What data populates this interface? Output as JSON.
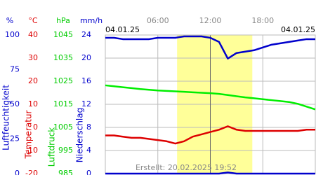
{
  "chart_data": {
    "type": "line",
    "date_start": "04.01.25",
    "date_end": "04.01.25",
    "note": "Erstellt: 20.02.2025 19:52",
    "x": [
      0,
      1,
      2,
      3,
      4,
      5,
      6,
      7,
      8,
      9,
      10,
      11,
      12,
      13,
      14,
      15,
      16,
      17,
      18,
      19,
      20,
      21,
      22,
      23,
      24
    ],
    "xlim": [
      0,
      24
    ],
    "xticks": [
      {
        "value": 6,
        "label": "06:00"
      },
      {
        "value": 12,
        "label": "12:00"
      },
      {
        "value": 18,
        "label": "18:00"
      }
    ],
    "shaded_range": [
      8.2,
      16.8
    ],
    "shaded_color": "#ffff99",
    "grid": true,
    "y_unit": "%",
    "y_label": "Luftfeuchtigkeit",
    "y_color": "#0000cc",
    "ylim": [
      0,
      100
    ],
    "yticks": [
      0,
      25,
      50,
      75,
      100
    ],
    "y2_unit": "°C",
    "y2_label": "Temperatur",
    "y2_color": "#dd0000",
    "y2lim": [
      -20,
      40
    ],
    "y2ticks": [
      -20,
      -10,
      0,
      10,
      20,
      30,
      40
    ],
    "y3_unit": "hPa",
    "y3_label": "Luftdruck",
    "y3_color": "#00cc00",
    "y3lim": [
      985,
      1045
    ],
    "y3ticks": [
      985,
      995,
      1005,
      1015,
      1025,
      1035,
      1045
    ],
    "y4_unit": "mm/h",
    "y4_label": "Niederschlag",
    "y4_color": "#0000cc",
    "y4lim": [
      0,
      24
    ],
    "y4ticks": [
      0,
      4,
      8,
      12,
      16,
      20,
      24
    ],
    "series": [
      {
        "name": "Luftfeuchtigkeit",
        "axis": "y",
        "color": "#0000cc",
        "values": [
          98,
          98,
          97,
          97,
          97,
          97,
          98,
          98,
          98,
          99,
          99,
          99,
          98,
          95,
          83,
          87,
          88,
          89,
          91,
          93,
          94,
          95,
          96,
          97,
          97
        ]
      },
      {
        "name": "Luftdruck",
        "axis": "y3",
        "color": "#00ee00",
        "values": [
          1023.2,
          1022.8,
          1022.4,
          1022,
          1021.6,
          1021.3,
          1021,
          1020.8,
          1020.6,
          1020.4,
          1020.2,
          1020,
          1019.8,
          1019.5,
          1019,
          1018.5,
          1018,
          1017.6,
          1017.2,
          1016.8,
          1016.4,
          1016,
          1015.2,
          1014,
          1012.8
        ]
      },
      {
        "name": "Temperatur",
        "axis": "y2",
        "color": "#dd0000",
        "values": [
          -3.5,
          -3.5,
          -4,
          -4.5,
          -4.5,
          -5,
          -5.5,
          -6,
          -7,
          -6,
          -4,
          -3,
          -2,
          -1,
          0.5,
          -1,
          -1.5,
          -1.5,
          -1.5,
          -1.5,
          -1.5,
          -1.5,
          -1.5,
          -1,
          -1
        ]
      },
      {
        "name": "Niederschlag",
        "axis": "y4",
        "color": "#0000cc",
        "values": [
          0,
          0,
          0,
          0,
          0,
          0,
          0,
          0,
          0,
          0,
          0,
          0,
          0,
          0,
          0.2,
          0,
          0,
          0,
          0,
          0,
          0,
          0,
          0,
          0,
          0
        ]
      }
    ]
  }
}
